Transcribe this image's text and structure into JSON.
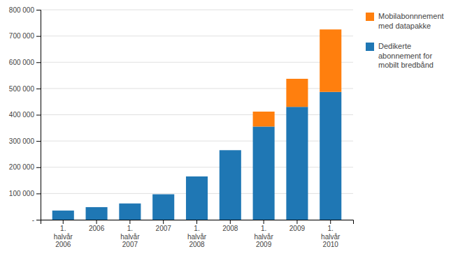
{
  "chart_data": {
    "type": "bar",
    "stacked": true,
    "grid": true,
    "legend": "right",
    "categories": [
      "1.\nhalvår\n2006",
      "2006",
      "1.\nhalvår\n2007",
      "2007",
      "1.\nhalvår\n2008",
      "2008",
      "1.\nhalvår\n2009",
      "2009",
      "1.\nhalvår\n2010"
    ],
    "series": [
      {
        "name": "Dedikerte\nabonnement for\nmobilt bredbånd",
        "values": [
          35000,
          48000,
          62000,
          97000,
          165000,
          265000,
          355000,
          430000,
          487000
        ]
      },
      {
        "name": "Mobilabonnnement\nmed datapakke",
        "values": [
          0,
          0,
          0,
          0,
          0,
          0,
          57000,
          107000,
          238000
        ]
      }
    ],
    "ylim": [
      0,
      800000
    ],
    "yticks": [
      {
        "value": 0,
        "label": "-"
      },
      {
        "value": 100000,
        "label": "100 000"
      },
      {
        "value": 200000,
        "label": "200 000"
      },
      {
        "value": 300000,
        "label": "300 000"
      },
      {
        "value": 400000,
        "label": "400 000"
      },
      {
        "value": 500000,
        "label": "500 000"
      },
      {
        "value": 600000,
        "label": "600 000"
      },
      {
        "value": 700000,
        "label": "700 000"
      },
      {
        "value": 800000,
        "label": "800 000"
      }
    ]
  }
}
